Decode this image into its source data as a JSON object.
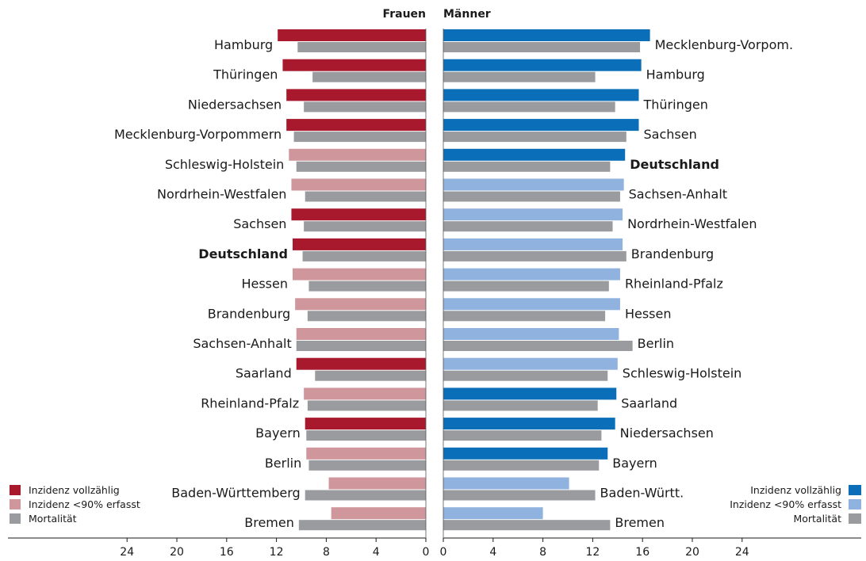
{
  "chart_data": {
    "type": "bar",
    "orientation": "horizontal-butterfly",
    "left_title": "Frauen",
    "right_title": "Männer",
    "x_ticks": [
      "24",
      "20",
      "16",
      "12",
      "8",
      "4",
      "0"
    ],
    "x_ticks_right": [
      "0",
      "4",
      "8",
      "12",
      "16",
      "20",
      "24"
    ],
    "xlim": [
      0,
      27
    ],
    "colors": {
      "women_complete": "#a8192e",
      "women_partial": "#cf969c",
      "men_complete": "#0a6fb8",
      "men_partial": "#8fb2de",
      "mortality": "#999b9e"
    },
    "legend_left": [
      {
        "label": "Inzidenz vollzählig",
        "key": "women_complete"
      },
      {
        "label": "Inzidenz <90% erfasst",
        "key": "women_partial"
      },
      {
        "label": "Mortalität",
        "key": "mortality"
      }
    ],
    "legend_right": [
      {
        "label": "Inzidenz vollzählig",
        "key": "men_complete"
      },
      {
        "label": "Inzidenz <90% erfasst",
        "key": "men_partial"
      },
      {
        "label": "Mortalität",
        "key": "mortality"
      }
    ],
    "women": [
      {
        "state": "Hamburg",
        "incidence": 11.9,
        "complete": true,
        "mortality": 10.3
      },
      {
        "state": "Thüringen",
        "incidence": 11.5,
        "complete": true,
        "mortality": 9.1
      },
      {
        "state": "Niedersachsen",
        "incidence": 11.2,
        "complete": true,
        "mortality": 9.8
      },
      {
        "state": "Mecklenburg-Vorpommern",
        "incidence": 11.2,
        "complete": true,
        "mortality": 10.6
      },
      {
        "state": "Schleswig-Holstein",
        "incidence": 11.0,
        "complete": false,
        "mortality": 10.4
      },
      {
        "state": "Nordrhein-Westfalen",
        "incidence": 10.8,
        "complete": false,
        "mortality": 9.7
      },
      {
        "state": "Sachsen",
        "incidence": 10.8,
        "complete": true,
        "mortality": 9.8
      },
      {
        "state": "Deutschland",
        "incidence": 10.7,
        "complete": true,
        "mortality": 9.9,
        "bold": true
      },
      {
        "state": "Hessen",
        "incidence": 10.7,
        "complete": false,
        "mortality": 9.4
      },
      {
        "state": "Brandenburg",
        "incidence": 10.5,
        "complete": false,
        "mortality": 9.5
      },
      {
        "state": "Sachsen-Anhalt",
        "incidence": 10.4,
        "complete": false,
        "mortality": 10.4
      },
      {
        "state": "Saarland",
        "incidence": 10.4,
        "complete": true,
        "mortality": 8.9
      },
      {
        "state": "Rheinland-Pfalz",
        "incidence": 9.8,
        "complete": false,
        "mortality": 9.5
      },
      {
        "state": "Bayern",
        "incidence": 9.7,
        "complete": true,
        "mortality": 9.6
      },
      {
        "state": "Berlin",
        "incidence": 9.6,
        "complete": false,
        "mortality": 9.4
      },
      {
        "state": "Baden-Württemberg",
        "incidence": 7.8,
        "complete": false,
        "mortality": 9.7
      },
      {
        "state": "Bremen",
        "incidence": 7.6,
        "complete": false,
        "mortality": 10.2
      }
    ],
    "men": [
      {
        "state": "Mecklenburg-Vorpom.",
        "incidence": 16.6,
        "complete": true,
        "mortality": 15.8
      },
      {
        "state": "Hamburg",
        "incidence": 15.9,
        "complete": true,
        "mortality": 12.2
      },
      {
        "state": "Thüringen",
        "incidence": 15.7,
        "complete": true,
        "mortality": 13.8
      },
      {
        "state": "Sachsen",
        "incidence": 15.7,
        "complete": true,
        "mortality": 14.7
      },
      {
        "state": "Deutschland",
        "incidence": 14.6,
        "complete": true,
        "mortality": 13.4,
        "bold": true
      },
      {
        "state": "Sachsen-Anhalt",
        "incidence": 14.5,
        "complete": false,
        "mortality": 14.2
      },
      {
        "state": "Nordrhein-Westfalen",
        "incidence": 14.4,
        "complete": false,
        "mortality": 13.6
      },
      {
        "state": "Brandenburg",
        "incidence": 14.4,
        "complete": false,
        "mortality": 14.7
      },
      {
        "state": "Rheinland-Pfalz",
        "incidence": 14.2,
        "complete": false,
        "mortality": 13.3
      },
      {
        "state": "Hessen",
        "incidence": 14.2,
        "complete": false,
        "mortality": 13.0
      },
      {
        "state": "Berlin",
        "incidence": 14.1,
        "complete": false,
        "mortality": 15.2
      },
      {
        "state": "Schleswig-Holstein",
        "incidence": 14.0,
        "complete": false,
        "mortality": 13.2
      },
      {
        "state": "Saarland",
        "incidence": 13.9,
        "complete": true,
        "mortality": 12.4
      },
      {
        "state": "Niedersachsen",
        "incidence": 13.8,
        "complete": true,
        "mortality": 12.7
      },
      {
        "state": "Bayern",
        "incidence": 13.2,
        "complete": true,
        "mortality": 12.5
      },
      {
        "state": "Baden-Württ.",
        "incidence": 10.1,
        "complete": false,
        "mortality": 12.2
      },
      {
        "state": "Bremen",
        "incidence": 8.0,
        "complete": false,
        "mortality": 13.4
      }
    ]
  }
}
